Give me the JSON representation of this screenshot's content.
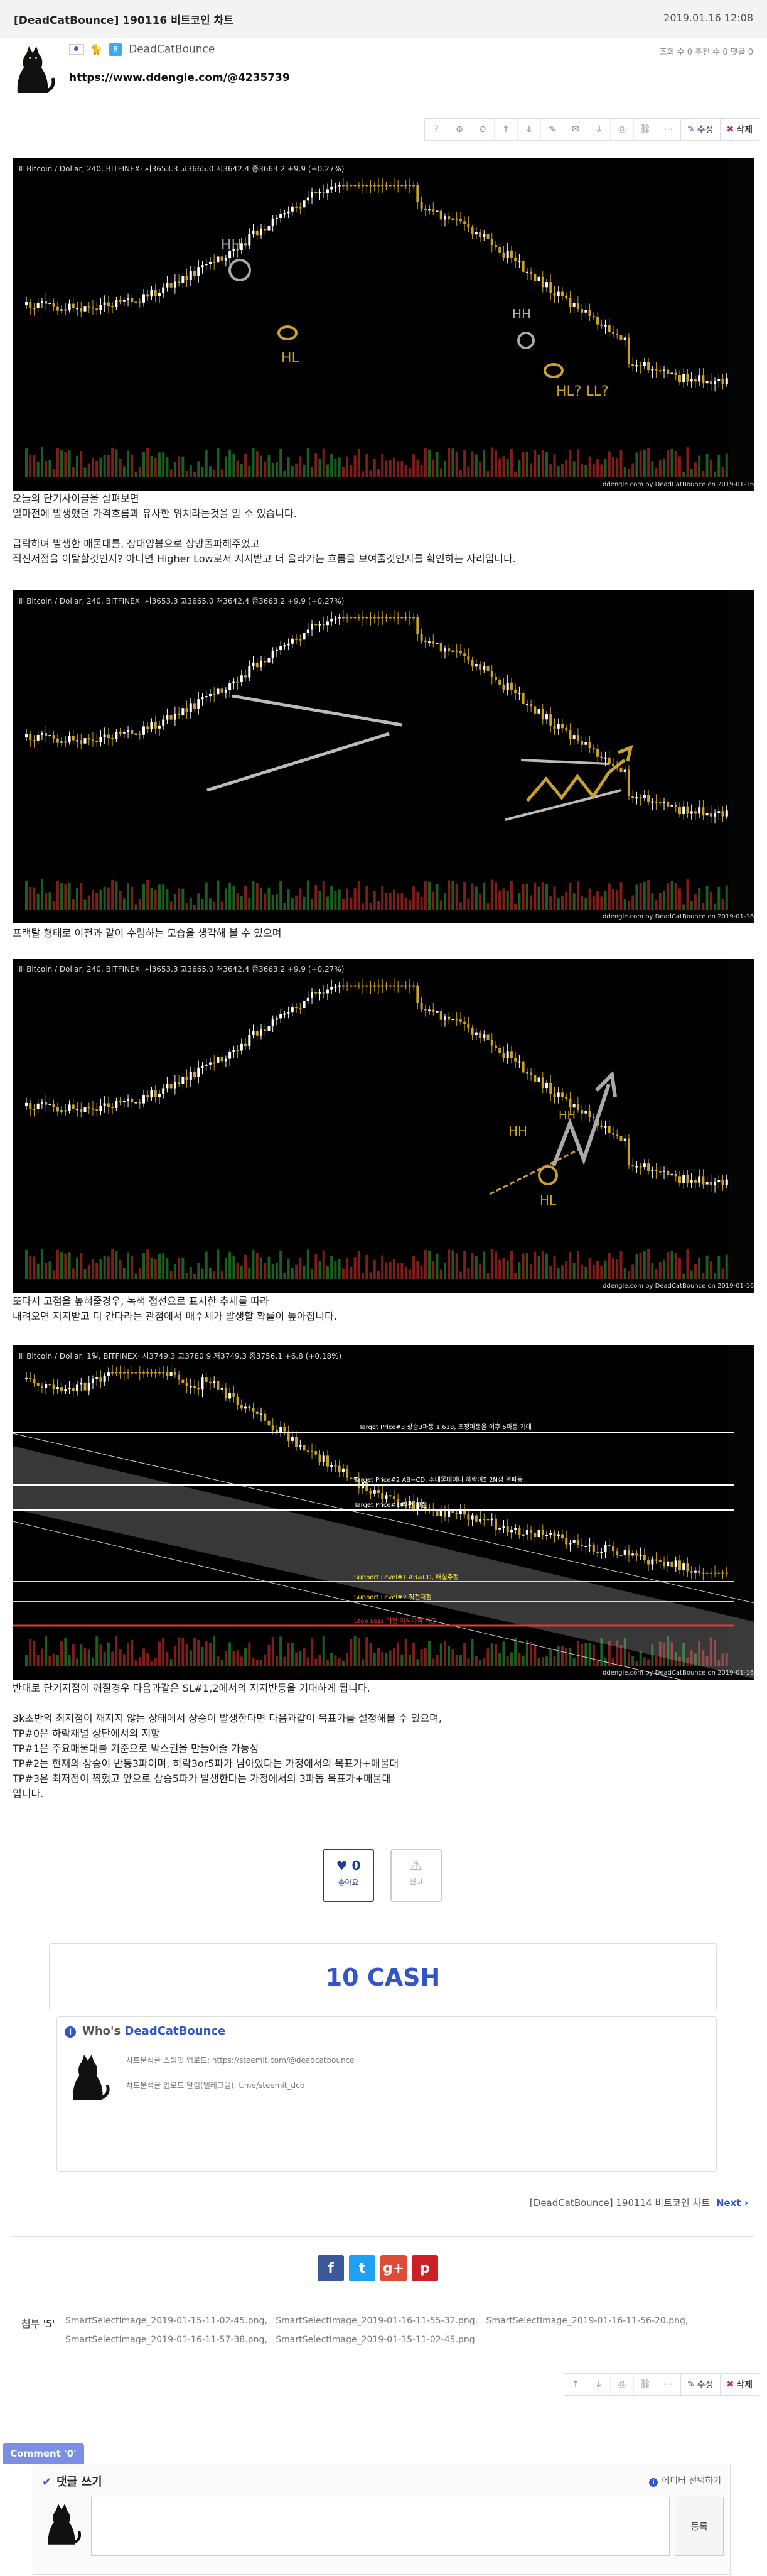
{
  "header": {
    "title": "[DeadCatBounce] 190116 비트코인 차트",
    "date": "2019.01.16 12:08"
  },
  "author": {
    "name": "DeadCatBounce",
    "level": "8",
    "counts_label": "조회 수 0   추천 수 0   댓글 0"
  },
  "post_url": "https://www.ddengle.com/@4235739",
  "toolbar": {
    "buttons": [
      "?",
      "⊕",
      "⊖",
      "↑",
      "↓",
      "✎",
      "✉",
      "⇩",
      "⎙",
      "⛓",
      "⋯"
    ],
    "edit_label": "수정",
    "delete_label": "삭제"
  },
  "charts": [
    {
      "title": "Ⅲ Bitcoin / Dollar, 240, BITFINEX·  시3653.3  고3665.0  저3642.4  종3663.2  +9.9 (+0.27%)"
    },
    {
      "title": "Ⅲ Bitcoin / Dollar, 240, BITFINEX·  시3653.3  고3665.0  저3642.4  종3663.2  +9.9 (+0.27%)"
    },
    {
      "title": "Ⅲ Bitcoin / Dollar, 240, BITFINEX·  시3653.3  고3665.0  저3642.4  종3663.2  +9.9 (+0.27%)"
    },
    {
      "title": "Ⅲ Bitcoin / Dollar, 1일, BITFINEX·  시3749.3  고3780.9  저3749.3  종3756.1  +6.8 (+0.18%)"
    }
  ],
  "chart_watermark": "ddengle.com by DeadCatBounce on 2019-01-16",
  "chart_annotations": {
    "hh": "HH",
    "hl": "HL",
    "hl_ll": "HL?\nLL?",
    "target3": "Target Price#3 상승3파동 1.618, 조정파동을 이후 5파동 기대",
    "target2": "Target Price#2 AB=CD, 주매물대이나 하락이5 2N점 결파동",
    "target1": "Target Price#1 직전 고점",
    "support1": "Support Level#1 AB=CD, 매실추정",
    "support2": "Support Level#2 직전저점",
    "stoploss": "Stop Loss 이전 이식가격 기준"
  },
  "texts": {
    "p1_l1": "오늘의 단기사이클을 살펴보면",
    "p1_l2": "얼마전에 발생했던 가격흐름과 유사한 위치라는것을 알 수 있습니다.",
    "p1_l3": "급락하며 발생한 매물대를, 장대양봉으로 상방돌파해주었고",
    "p1_l4": "직전저점을 이탈할것인지? 아니면 Higher Low로서 지지받고 더 올라가는 흐름을 보여줄것인지를 확인하는 자리입니다.",
    "p2_l1": "프랙탈 형태로 이전과 같이 수렴하는 모습을 생각해 볼 수 있으며",
    "p3_l1": "또다시 고점을 높혀줄경우, 녹색 접선으로 표시한 추세를 따라",
    "p3_l2": "내려오면 지지받고 더 간다라는 관점에서 매수세가 발생할 확률이 높아집니다.",
    "p4_l1": "반대로 단기저점이 깨질경우 다음과같은 SL#1,2에서의 지지반등을 기대하게 됩니다.",
    "p4_l2": "3k초반의 최저점이 깨지지 않는 상태에서 상승이 발생한다면 다음과같이 목표가를 설정해볼 수 있으며,",
    "p4_l3": "TP#0은 하락채널 상단에서의 저항",
    "p4_l4": "TP#1은 주요매물대를 기준으로 박스권을 만들어줄 가능성",
    "p4_l5": "TP#2는 현재의 상승이 반등3파이며, 하락3or5파가 남아있다는 가정에서의 목표가+매물대",
    "p4_l6": "TP#3은 최저점이 찍혔고 앞으로 상승5파가 발생한다는 가정에서의 3파동 목표가+매물대",
    "p4_l7": "입니다."
  },
  "vote": {
    "like_count": "0",
    "like_label": "좋아요",
    "report_label": "신고"
  },
  "cash": "10 CASH",
  "who": {
    "heading_prefix": "Who's ",
    "name": "DeadCatBounce",
    "line1": "차트분석글 스팀잇 업로드: https://steemit.com/@deadcatbounce",
    "line2": "차트분석글 업로드 알림(텔레그램): t.me/steemit_dcb"
  },
  "nav": {
    "title": "[DeadCatBounce] 190114 비트코인 차트",
    "next": "Next"
  },
  "social": [
    {
      "label": "f",
      "color": "#3b5998"
    },
    {
      "label": "t",
      "color": "#1da1f2"
    },
    {
      "label": "g+",
      "color": "#dd4b39"
    },
    {
      "label": "p",
      "color": "#cb2027"
    }
  ],
  "attach": {
    "label": "첨부 '5'",
    "files_l1": "SmartSelectImage_2019-01-15-11-02-45.png,   SmartSelectImage_2019-01-16-11-55-32.png,   SmartSelectImage_2019-01-16-11-56-20.png,",
    "files_l2": "SmartSelectImage_2019-01-16-11-57-38.png,   SmartSelectImage_2019-01-15-11-02-45.png"
  },
  "toolbar2": {
    "buttons": [
      "↑",
      "↓",
      "⎙",
      "⛓",
      "⋯"
    ],
    "edit_label": "수정",
    "delete_label": "삭제"
  },
  "comment": {
    "tab": "Comment '0'",
    "write": "댓글 쓰기",
    "editor": "에디터 선택하기",
    "submit": "등록"
  }
}
